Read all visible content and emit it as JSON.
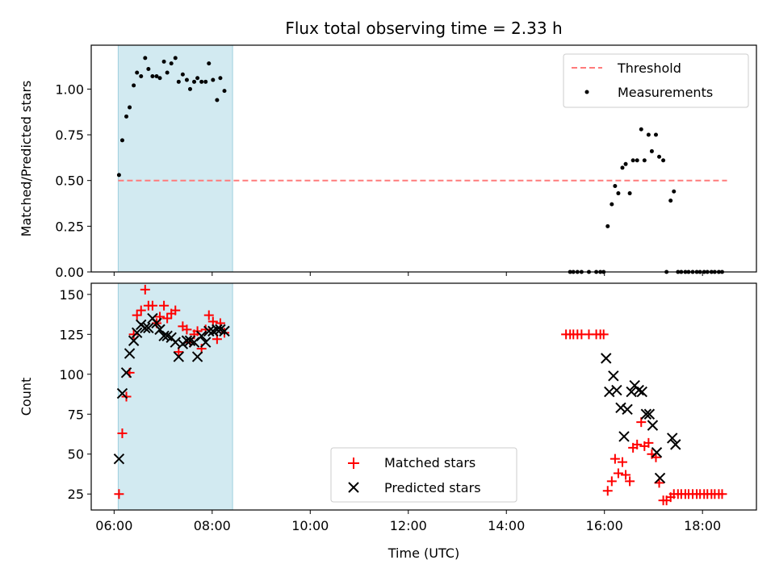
{
  "chart_data": {
    "title": "Flux total observing time = 2.33 h",
    "xlabel": "Time (UTC)",
    "xlim": [
      "05:32",
      "19:06"
    ],
    "xticks": [
      "06:00",
      "08:00",
      "10:00",
      "12:00",
      "14:00",
      "16:00",
      "18:00"
    ],
    "shaded_interval": {
      "start": "06:05",
      "end": "08:25",
      "color": "#add8e6"
    },
    "panels": [
      {
        "type": "scatter",
        "ylabel": "Matched/Predicted stars",
        "ylim": [
          0,
          1.24
        ],
        "yticks": [
          "0.00",
          "0.25",
          "0.50",
          "0.75",
          "1.00"
        ],
        "legend_position": "top-right",
        "threshold": {
          "name": "Threshold",
          "y": 0.5,
          "x_start": "06:05",
          "x_end": "18:30",
          "color": "#ff7b7b"
        },
        "series": [
          {
            "name": "Measurements",
            "color": "#000000",
            "marker": "dot",
            "points": [
              [
                "06:06",
                0.53
              ],
              [
                "06:10",
                0.72
              ],
              [
                "06:15",
                0.85
              ],
              [
                "06:19",
                0.9
              ],
              [
                "06:24",
                1.02
              ],
              [
                "06:28",
                1.09
              ],
              [
                "06:33",
                1.07
              ],
              [
                "06:38",
                1.17
              ],
              [
                "06:42",
                1.11
              ],
              [
                "06:47",
                1.07
              ],
              [
                "06:52",
                1.07
              ],
              [
                "06:56",
                1.06
              ],
              [
                "07:01",
                1.15
              ],
              [
                "07:05",
                1.09
              ],
              [
                "07:10",
                1.14
              ],
              [
                "07:15",
                1.17
              ],
              [
                "07:19",
                1.04
              ],
              [
                "07:24",
                1.08
              ],
              [
                "07:29",
                1.05
              ],
              [
                "07:33",
                1.0
              ],
              [
                "07:38",
                1.04
              ],
              [
                "07:42",
                1.06
              ],
              [
                "07:47",
                1.04
              ],
              [
                "07:52",
                1.04
              ],
              [
                "07:56",
                1.14
              ],
              [
                "08:01",
                1.05
              ],
              [
                "08:06",
                0.94
              ],
              [
                "08:10",
                1.06
              ],
              [
                "08:15",
                0.99
              ],
              [
                "15:18",
                0.0
              ],
              [
                "15:22",
                0.0
              ],
              [
                "15:27",
                0.0
              ],
              [
                "15:32",
                0.0
              ],
              [
                "15:41",
                0.0
              ],
              [
                "15:50",
                0.0
              ],
              [
                "15:55",
                0.0
              ],
              [
                "15:59",
                0.0
              ],
              [
                "16:04",
                0.25
              ],
              [
                "16:09",
                0.37
              ],
              [
                "16:13",
                0.47
              ],
              [
                "16:17",
                0.43
              ],
              [
                "16:22",
                0.57
              ],
              [
                "16:26",
                0.59
              ],
              [
                "16:31",
                0.43
              ],
              [
                "16:35",
                0.61
              ],
              [
                "16:40",
                0.61
              ],
              [
                "16:45",
                0.78
              ],
              [
                "16:49",
                0.61
              ],
              [
                "16:54",
                0.75
              ],
              [
                "16:58",
                0.66
              ],
              [
                "17:03",
                0.75
              ],
              [
                "17:07",
                0.63
              ],
              [
                "17:12",
                0.61
              ],
              [
                "17:16",
                0.0
              ],
              [
                "17:21",
                0.39
              ],
              [
                "17:25",
                0.44
              ],
              [
                "17:30",
                0.0
              ],
              [
                "17:34",
                0.0
              ],
              [
                "17:39",
                0.0
              ],
              [
                "17:43",
                0.0
              ],
              [
                "17:48",
                0.0
              ],
              [
                "17:53",
                0.0
              ],
              [
                "17:57",
                0.0
              ],
              [
                "18:02",
                0.0
              ],
              [
                "18:06",
                0.0
              ],
              [
                "18:11",
                0.0
              ],
              [
                "18:15",
                0.0
              ],
              [
                "18:20",
                0.0
              ],
              [
                "18:24",
                0.0
              ]
            ]
          }
        ]
      },
      {
        "type": "scatter",
        "ylabel": "Count",
        "ylim": [
          15,
          157
        ],
        "yticks": [
          "25",
          "50",
          "75",
          "100",
          "125",
          "150"
        ],
        "legend_position": "lower-center",
        "series": [
          {
            "name": "Matched stars",
            "color": "#ff0000",
            "marker": "plus",
            "points": [
              [
                "06:06",
                25
              ],
              [
                "06:10",
                63
              ],
              [
                "06:15",
                86
              ],
              [
                "06:19",
                101
              ],
              [
                "06:24",
                125
              ],
              [
                "06:28",
                137
              ],
              [
                "06:33",
                140
              ],
              [
                "06:38",
                153
              ],
              [
                "06:42",
                143
              ],
              [
                "06:47",
                143
              ],
              [
                "06:52",
                132
              ],
              [
                "06:56",
                136
              ],
              [
                "07:01",
                143
              ],
              [
                "07:05",
                135
              ],
              [
                "07:10",
                138
              ],
              [
                "07:15",
                140
              ],
              [
                "07:19",
                114
              ],
              [
                "07:24",
                130
              ],
              [
                "07:29",
                128
              ],
              [
                "07:33",
                120
              ],
              [
                "07:38",
                125
              ],
              [
                "07:42",
                127
              ],
              [
                "07:47",
                116
              ],
              [
                "07:52",
                128
              ],
              [
                "07:56",
                137
              ],
              [
                "08:01",
                133
              ],
              [
                "08:06",
                122
              ],
              [
                "08:10",
                132
              ],
              [
                "08:15",
                126
              ],
              [
                "15:13",
                125
              ],
              [
                "15:18",
                125
              ],
              [
                "15:22",
                125
              ],
              [
                "15:27",
                125
              ],
              [
                "15:32",
                125
              ],
              [
                "15:41",
                125
              ],
              [
                "15:50",
                125
              ],
              [
                "15:55",
                125
              ],
              [
                "15:59",
                125
              ],
              [
                "16:04",
                27
              ],
              [
                "16:09",
                33
              ],
              [
                "16:13",
                47
              ],
              [
                "16:17",
                38
              ],
              [
                "16:22",
                45
              ],
              [
                "16:26",
                37
              ],
              [
                "16:31",
                33
              ],
              [
                "16:35",
                54
              ],
              [
                "16:40",
                56
              ],
              [
                "16:45",
                70
              ],
              [
                "16:49",
                55
              ],
              [
                "16:54",
                57
              ],
              [
                "16:58",
                50
              ],
              [
                "17:03",
                48
              ],
              [
                "17:07",
                32
              ],
              [
                "17:12",
                21
              ],
              [
                "17:16",
                21
              ],
              [
                "17:21",
                23
              ],
              [
                "17:25",
                25
              ],
              [
                "17:30",
                25
              ],
              [
                "17:34",
                25
              ],
              [
                "17:39",
                25
              ],
              [
                "17:43",
                25
              ],
              [
                "17:48",
                25
              ],
              [
                "17:53",
                25
              ],
              [
                "17:57",
                25
              ],
              [
                "18:02",
                25
              ],
              [
                "18:06",
                25
              ],
              [
                "18:11",
                25
              ],
              [
                "18:15",
                25
              ],
              [
                "18:20",
                25
              ],
              [
                "18:24",
                25
              ]
            ]
          },
          {
            "name": "Predicted stars",
            "color": "#000000",
            "marker": "cross",
            "points": [
              [
                "06:06",
                47
              ],
              [
                "06:10",
                88
              ],
              [
                "06:15",
                101
              ],
              [
                "06:19",
                113
              ],
              [
                "06:24",
                121
              ],
              [
                "06:28",
                126
              ],
              [
                "06:33",
                131
              ],
              [
                "06:38",
                129
              ],
              [
                "06:42",
                129
              ],
              [
                "06:47",
                135
              ],
              [
                "06:52",
                132
              ],
              [
                "06:56",
                128
              ],
              [
                "07:01",
                124
              ],
              [
                "07:05",
                124
              ],
              [
                "07:10",
                123
              ],
              [
                "07:15",
                120
              ],
              [
                "07:19",
                111
              ],
              [
                "07:24",
                119
              ],
              [
                "07:29",
                121
              ],
              [
                "07:33",
                121
              ],
              [
                "07:38",
                120
              ],
              [
                "07:42",
                111
              ],
              [
                "07:47",
                124
              ],
              [
                "07:52",
                120
              ],
              [
                "07:56",
                127
              ],
              [
                "08:01",
                127
              ],
              [
                "08:06",
                128
              ],
              [
                "08:10",
                128
              ],
              [
                "08:15",
                127
              ],
              [
                "16:02",
                110
              ],
              [
                "16:06",
                89
              ],
              [
                "16:11",
                99
              ],
              [
                "16:15",
                90
              ],
              [
                "16:20",
                79
              ],
              [
                "16:24",
                61
              ],
              [
                "16:28",
                78
              ],
              [
                "16:33",
                89
              ],
              [
                "16:37",
                93
              ],
              [
                "16:42",
                90
              ],
              [
                "16:46",
                89
              ],
              [
                "16:51",
                75
              ],
              [
                "16:55",
                75
              ],
              [
                "16:59",
                68
              ],
              [
                "17:04",
                51
              ],
              [
                "17:08",
                35
              ],
              [
                "17:23",
                60
              ],
              [
                "17:27",
                56
              ]
            ]
          }
        ]
      }
    ]
  }
}
